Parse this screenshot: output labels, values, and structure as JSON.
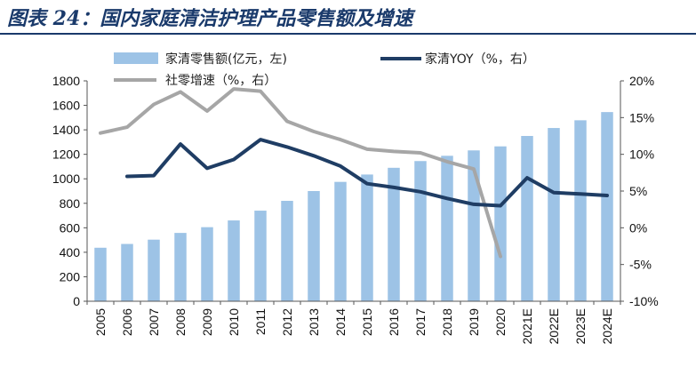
{
  "title": "图表 24：国内家庭清洁护理产品零售额及增速",
  "chart_data": {
    "type": "bar+line",
    "categories": [
      "2005",
      "2006",
      "2007",
      "2008",
      "2009",
      "2010",
      "2011",
      "2012",
      "2013",
      "2014",
      "2015",
      "2016",
      "2017",
      "2018",
      "2019",
      "2020",
      "2021E",
      "2022E",
      "2023E",
      "2024E"
    ],
    "series": [
      {
        "name": "家清零售额(亿元，左)",
        "type": "bar",
        "axis": "left",
        "color": "#9dc3e6",
        "values": [
          437,
          468,
          503,
          558,
          605,
          660,
          740,
          820,
          900,
          975,
          1035,
          1090,
          1145,
          1188,
          1232,
          1265,
          1350,
          1415,
          1478,
          1545
        ]
      },
      {
        "name": "家清YOY（%，右）",
        "type": "line",
        "axis": "right",
        "color": "#1f3d64",
        "values": [
          null,
          7.0,
          7.1,
          11.4,
          8.1,
          9.3,
          12.0,
          11.0,
          9.8,
          8.4,
          6.0,
          5.5,
          4.9,
          4.0,
          3.2,
          3.0,
          6.8,
          4.8,
          4.6,
          4.4
        ]
      },
      {
        "name": "社零增速（%，右）",
        "type": "line",
        "axis": "right",
        "color": "#a6a6a6",
        "values": [
          12.9,
          13.7,
          16.8,
          18.5,
          15.9,
          18.9,
          18.6,
          14.5,
          13.1,
          12.0,
          10.7,
          10.4,
          10.2,
          9.0,
          8.0,
          -3.9,
          null,
          null,
          null,
          null
        ]
      }
    ],
    "y_left": {
      "min": 0,
      "max": 1800,
      "step": 200,
      "ticks": [
        "0",
        "200",
        "400",
        "600",
        "800",
        "1000",
        "1200",
        "1400",
        "1600",
        "1800"
      ]
    },
    "y_right": {
      "min": -10,
      "max": 20,
      "step": 5,
      "ticks": [
        "-10%",
        "-5%",
        "0%",
        "5%",
        "10%",
        "15%",
        "20%"
      ]
    },
    "legend": [
      "家清零售额(亿元，左)",
      "家清YOY（%，右）",
      "社零增速（%，右）"
    ],
    "legend_position": "top",
    "grid": false
  }
}
